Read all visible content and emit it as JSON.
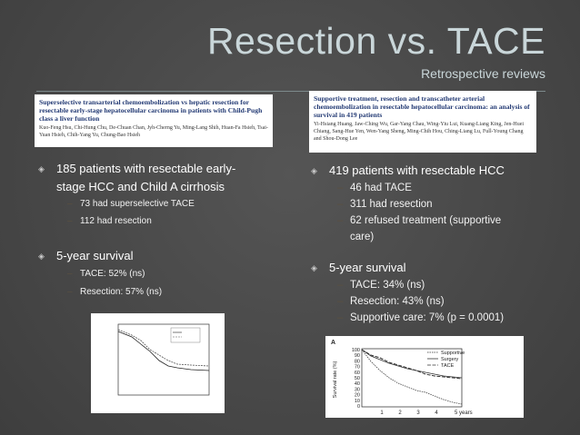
{
  "title": "Resection vs. TACE",
  "subtitle": "Retrospective reviews",
  "columns": [
    {
      "paper": {
        "title": "Superselective transarterial chemoembolization vs hepatic resection for resectable early-stage hepatocellular carcinoma in patients with Child-Pugh class a liver function",
        "authors": "Kuo-Feng Hsu, Chi-Hung Chu, De-Chuan Chan, Jyh-Cherng Yu, Ming-Lang Shih, Huan-Fa Hsieh, Tsai-Yuan Hsieh, Chih-Yang Yu, Chung-Bao Hsieh"
      },
      "bullets": [
        {
          "text": "185 patients with resectable early-stage HCC and Child A cirrhosis",
          "sub": [
            "73 had superselective TACE",
            "112 had resection"
          ]
        },
        {
          "text": "5-year survival",
          "sub": [
            "TACE: 52% (ns)",
            "Resection: 57% (ns)"
          ]
        }
      ]
    },
    {
      "paper": {
        "title": "Supportive treatment, resection and transcatheter arterial chemoembolization in resectable hepatocellular carcinoma: an analysis of survival in 419 patients",
        "authors": "Yi-Hsiang Huang, Jaw-Ching Wu, Gar-Yang Chau, Wing-Yiu Lui, Kuang-Liang King, Jen-Huei Chiang, Sang-Hue Yen, Wen-Yang Sheng, Ming-Chih Hou, Ching-Liang Lu, Full-Young Chang and Shou-Dong Lee"
      },
      "bullets": [
        {
          "text": "419 patients with resectable HCC",
          "sub": [
            "46 had TACE",
            "311 had resection",
            "62 refused treatment (supportive care)"
          ]
        },
        {
          "text": "5-year survival",
          "sub": [
            "TACE: 34% (ns)",
            "Resection: 43% (ns)",
            "Supportive care: 7% (p = 0.0001)"
          ]
        }
      ]
    }
  ],
  "figure": {
    "panel": "A",
    "y_label": "Survival rate (%)",
    "yticks": [
      100,
      90,
      80,
      70,
      60,
      50,
      40,
      30,
      20,
      10,
      0
    ],
    "xticks": [
      1,
      2,
      3,
      4,
      "5 years"
    ],
    "legend": [
      "Supportive",
      "Surgery",
      "TACE"
    ]
  }
}
